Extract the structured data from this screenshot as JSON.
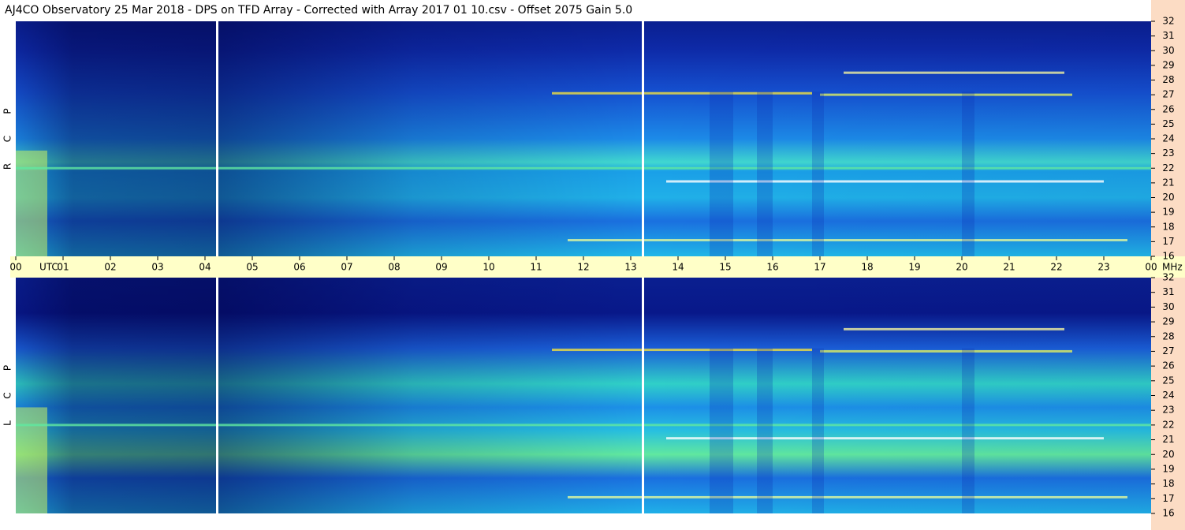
{
  "title": "AJ4CO Observatory  25 Mar 2018  -  DPS on TFD Array  -  Corrected with Array 2017 01 10.csv  -  Offset 2075  Gain 5.0",
  "panels": [
    {
      "letters": [
        "R",
        "C",
        "P"
      ]
    },
    {
      "letters": [
        "L",
        "C",
        "P"
      ]
    }
  ],
  "time_axis": {
    "hours": [
      "00",
      "01",
      "02",
      "03",
      "04",
      "05",
      "06",
      "07",
      "08",
      "09",
      "10",
      "11",
      "12",
      "13",
      "14",
      "15",
      "16",
      "17",
      "18",
      "19",
      "20",
      "21",
      "22",
      "23",
      "00"
    ],
    "unit": "UTC"
  },
  "freq_axis": {
    "ticks": [
      16,
      17,
      18,
      19,
      20,
      21,
      22,
      23,
      24,
      25,
      26,
      27,
      28,
      29,
      30,
      31,
      32
    ],
    "unit": "MHz"
  }
}
